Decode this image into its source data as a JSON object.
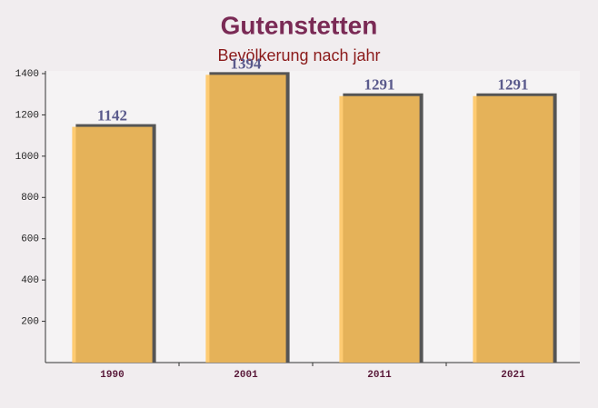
{
  "chart_data": {
    "type": "bar",
    "title": "Gutenstetten",
    "subtitle": "Bevölkerung nach jahr",
    "categories": [
      "1990",
      "2001",
      "2011",
      "2021"
    ],
    "values": [
      1142,
      1394,
      1291,
      1291
    ],
    "color": "#ffc35a",
    "ylim": [
      0,
      1400
    ],
    "yticks": [
      200,
      400,
      600,
      800,
      1000,
      1200,
      1400
    ],
    "grid": false
  }
}
